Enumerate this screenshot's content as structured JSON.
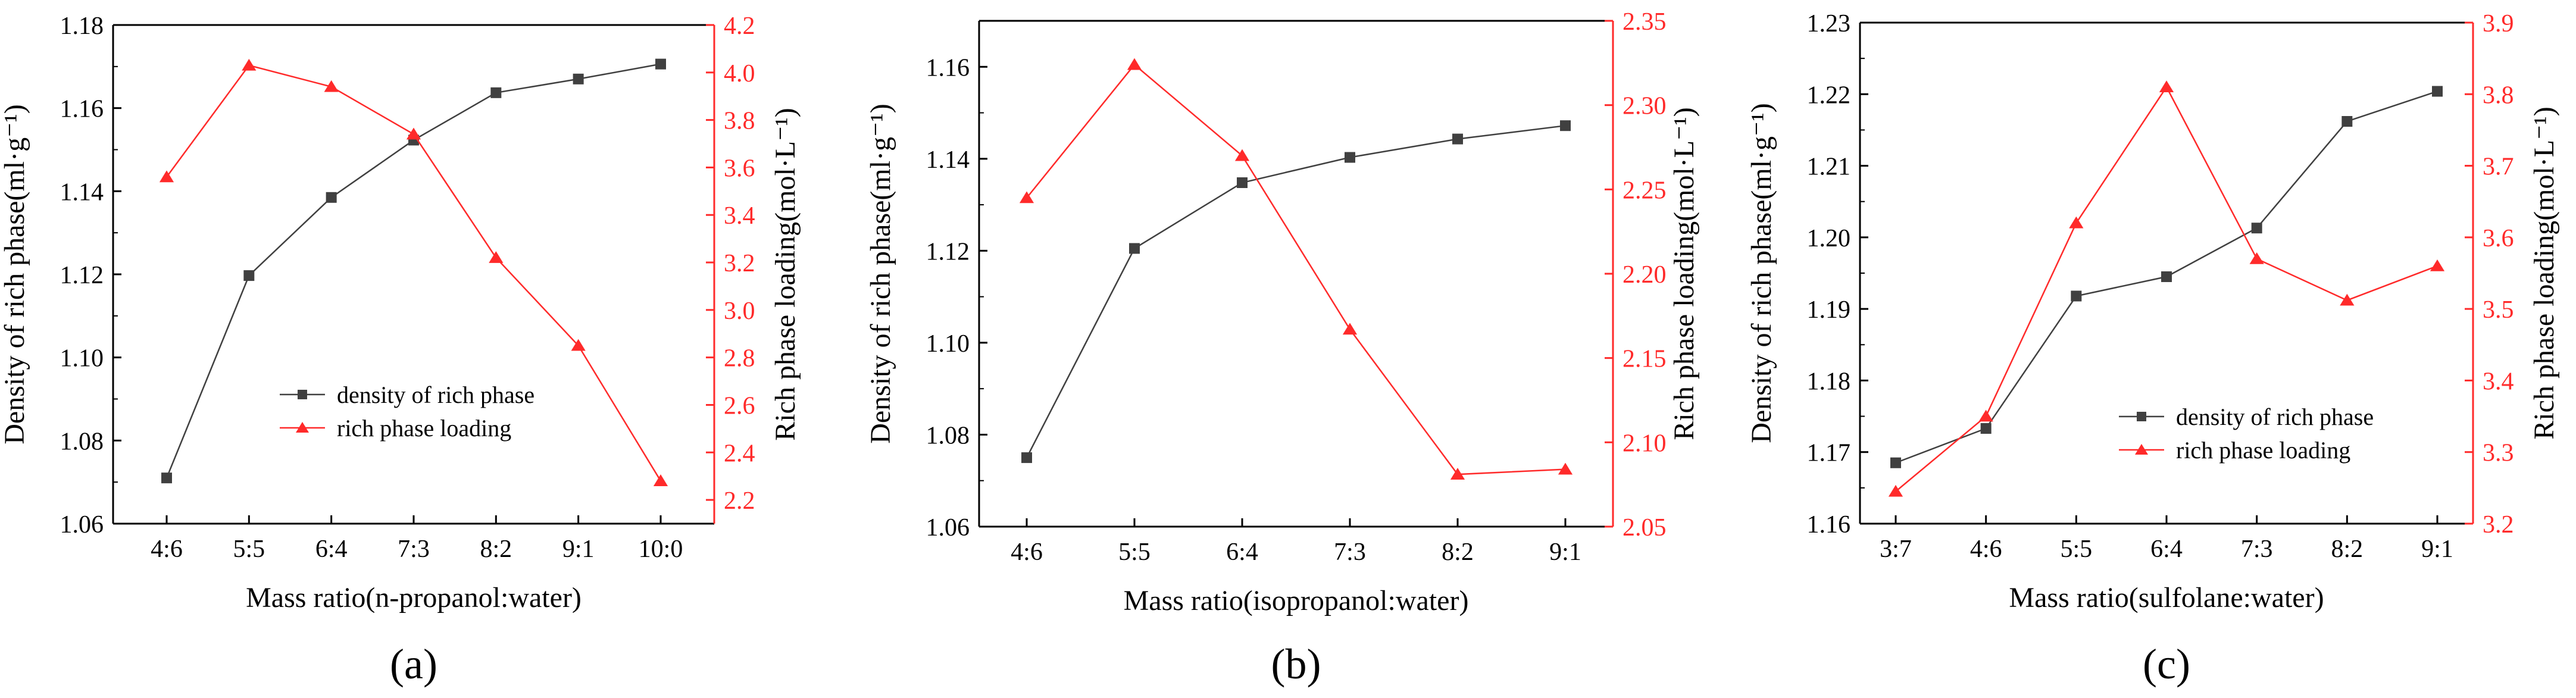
{
  "colors": {
    "left_series": "#404040",
    "right_series": "#ff2a2a",
    "axis": "#000000"
  },
  "chart_data": [
    {
      "type": "line",
      "panel_label": "(a)",
      "xlabel": "Mass ratio(n-propanol:water)",
      "ylabel": "Density of rich phase(ml·g⁻¹)",
      "y2label": "Rich phase loading(mol·L⁻¹)",
      "categories": [
        "4:6",
        "5:5",
        "6:4",
        "7:3",
        "8:2",
        "9:1",
        "10:0"
      ],
      "ylim": [
        1.06,
        1.18
      ],
      "yticks": [
        "1.06",
        "1.08",
        "1.10",
        "1.12",
        "1.14",
        "1.16",
        "1.18"
      ],
      "y2lim": [
        2.1,
        4.2
      ],
      "y2ticks": [
        "2.2",
        "2.4",
        "2.6",
        "2.8",
        "3.0",
        "3.2",
        "3.4",
        "3.6",
        "3.8",
        "4.0",
        "4.2"
      ],
      "legend_position": "center-right",
      "series": [
        {
          "name": "density of rich phase",
          "axis": "left",
          "marker": "square",
          "values": [
            1.071,
            1.1197,
            1.1385,
            1.1523,
            1.1637,
            1.167,
            1.1706
          ]
        },
        {
          "name": "rich phase loading",
          "axis": "right",
          "marker": "triangle",
          "values": [
            3.56,
            4.03,
            3.94,
            3.74,
            3.22,
            2.85,
            2.28
          ]
        }
      ]
    },
    {
      "type": "line",
      "panel_label": "(b)",
      "xlabel": "Mass ratio(isopropanol:water)",
      "ylabel": "Density of rich phase(ml·g⁻¹)",
      "y2label": "Rich phase loading(mol·L⁻¹)",
      "categories": [
        "4:6",
        "5:5",
        "6:4",
        "7:3",
        "8:2",
        "9:1"
      ],
      "ylim": [
        1.06,
        1.17
      ],
      "yticks": [
        "1.06",
        "1.08",
        "1.10",
        "1.12",
        "1.14",
        "1.16"
      ],
      "y2lim": [
        2.05,
        2.35
      ],
      "y2ticks": [
        "2.05",
        "2.10",
        "2.15",
        "2.20",
        "2.25",
        "2.30",
        "2.35"
      ],
      "legend_position": "none",
      "series": [
        {
          "name": "density of rich phase",
          "axis": "left",
          "marker": "square",
          "values": [
            1.075,
            1.1205,
            1.1348,
            1.1403,
            1.1443,
            1.1472
          ]
        },
        {
          "name": "rich phase loading",
          "axis": "right",
          "marker": "triangle",
          "values": [
            2.245,
            2.324,
            2.27,
            2.167,
            2.081,
            2.084
          ]
        }
      ]
    },
    {
      "type": "line",
      "panel_label": "(c)",
      "xlabel": "Mass ratio(sulfolane:water)",
      "ylabel": "Density of rich phase(ml·g⁻¹)",
      "y2label": "Rich phase loading(mol·L⁻¹)",
      "categories": [
        "3:7",
        "4:6",
        "5:5",
        "6:4",
        "7:3",
        "8:2",
        "9:1"
      ],
      "ylim": [
        1.16,
        1.23
      ],
      "yticks": [
        "1.16",
        "1.17",
        "1.18",
        "1.19",
        "1.20",
        "1.21",
        "1.22",
        "1.23"
      ],
      "y2lim": [
        3.2,
        3.9
      ],
      "y2ticks": [
        "3.2",
        "3.3",
        "3.4",
        "3.5",
        "3.6",
        "3.7",
        "3.8",
        "3.9"
      ],
      "legend_position": "bottom-right",
      "series": [
        {
          "name": "density of rich phase",
          "axis": "left",
          "marker": "square",
          "values": [
            1.1685,
            1.1733,
            1.1918,
            1.1945,
            1.2013,
            1.2162,
            1.2204
          ]
        },
        {
          "name": "rich phase loading",
          "axis": "right",
          "marker": "triangle",
          "values": [
            3.245,
            3.35,
            3.62,
            3.81,
            3.57,
            3.512,
            3.56
          ]
        }
      ]
    }
  ]
}
